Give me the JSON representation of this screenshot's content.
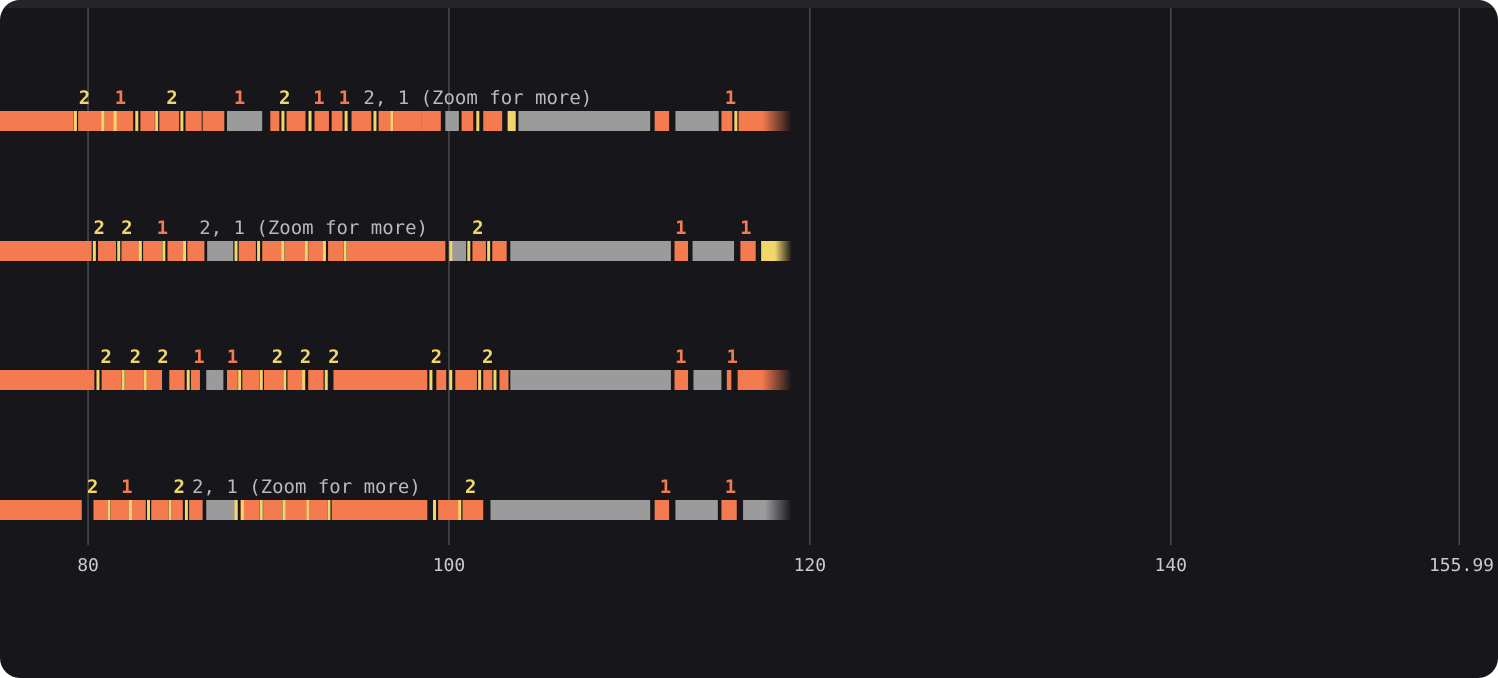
{
  "chart_data": {
    "type": "timeline",
    "x_axis": {
      "ticks": [
        "80",
        "100",
        "120",
        "140",
        "155.99"
      ],
      "tick_values": [
        80,
        100,
        120,
        140,
        155.99
      ],
      "domain": [
        75.12,
        156.03
      ],
      "gridlines": true
    },
    "colors": {
      "primary": "#f47a4f",
      "secondary": "#9b9b9b",
      "marker": "#f1d66c",
      "label_one": "#f47a4f",
      "label_two": "#f1d66c",
      "label_zoom": "#b9b9bf",
      "gridline": "#4a4a52",
      "background": "#17161b"
    },
    "data_extent_end": 119.0,
    "tracks": [
      {
        "segments": [
          {
            "start": 75.12,
            "end": 79.2,
            "kind": "primary"
          },
          {
            "start": 79.45,
            "end": 80.75,
            "kind": "primary"
          },
          {
            "start": 80.9,
            "end": 81.45,
            "kind": "primary"
          },
          {
            "start": 81.5,
            "end": 82.5,
            "kind": "primary"
          },
          {
            "start": 82.9,
            "end": 83.7,
            "kind": "primary"
          },
          {
            "start": 83.95,
            "end": 85.05,
            "kind": "primary"
          },
          {
            "start": 85.4,
            "end": 86.3,
            "kind": "primary"
          },
          {
            "start": 86.35,
            "end": 87.55,
            "kind": "primary"
          },
          {
            "start": 87.7,
            "end": 89.65,
            "kind": "secondary"
          },
          {
            "start": 90.1,
            "end": 90.6,
            "kind": "primary"
          },
          {
            "start": 91.0,
            "end": 92.05,
            "kind": "primary"
          },
          {
            "start": 92.55,
            "end": 93.35,
            "kind": "primary"
          },
          {
            "start": 93.5,
            "end": 94.1,
            "kind": "primary"
          },
          {
            "start": 94.6,
            "end": 95.7,
            "kind": "primary"
          },
          {
            "start": 96.1,
            "end": 96.8,
            "kind": "primary"
          },
          {
            "start": 96.95,
            "end": 98.5,
            "kind": "primary"
          },
          {
            "start": 98.5,
            "end": 99.55,
            "kind": "primary"
          },
          {
            "start": 99.8,
            "end": 100.55,
            "kind": "secondary"
          },
          {
            "start": 100.7,
            "end": 101.35,
            "kind": "primary"
          },
          {
            "start": 101.9,
            "end": 102.95,
            "kind": "primary"
          },
          {
            "start": 103.25,
            "end": 103.7,
            "kind": "marker"
          },
          {
            "start": 103.85,
            "end": 111.15,
            "kind": "secondary"
          },
          {
            "start": 111.4,
            "end": 112.2,
            "kind": "primary"
          },
          {
            "start": 112.55,
            "end": 114.95,
            "kind": "secondary"
          },
          {
            "start": 115.1,
            "end": 115.7,
            "kind": "primary"
          },
          {
            "start": 116.05,
            "end": 119.0,
            "kind": "primary",
            "fade": true
          }
        ],
        "markers": [
          79.3,
          80.82,
          81.5,
          82.7,
          83.8,
          85.2,
          90.8,
          92.3,
          94.3,
          95.9,
          96.85,
          101.6,
          115.9
        ],
        "labels": [
          {
            "x": 79.8,
            "text": "2",
            "kind": "two"
          },
          {
            "x": 81.8,
            "text": "1",
            "kind": "one"
          },
          {
            "x": 84.65,
            "text": "2",
            "kind": "two"
          },
          {
            "x": 88.4,
            "text": "1",
            "kind": "one"
          },
          {
            "x": 90.9,
            "text": "2",
            "kind": "two"
          },
          {
            "x": 92.8,
            "text": "1",
            "kind": "one"
          },
          {
            "x": 94.2,
            "text": "1",
            "kind": "one"
          },
          {
            "x": 101.6,
            "text": "2, 1 (Zoom for more)",
            "kind": "zoom"
          },
          {
            "x": 115.6,
            "text": "1",
            "kind": "one"
          }
        ]
      },
      {
        "segments": [
          {
            "start": 75.12,
            "end": 80.2,
            "kind": "primary"
          },
          {
            "start": 80.55,
            "end": 81.55,
            "kind": "primary"
          },
          {
            "start": 81.85,
            "end": 82.85,
            "kind": "primary"
          },
          {
            "start": 83.05,
            "end": 84.1,
            "kind": "primary"
          },
          {
            "start": 84.4,
            "end": 85.3,
            "kind": "primary"
          },
          {
            "start": 85.5,
            "end": 86.45,
            "kind": "primary"
          },
          {
            "start": 86.6,
            "end": 88.05,
            "kind": "secondary"
          },
          {
            "start": 88.35,
            "end": 89.3,
            "kind": "primary"
          },
          {
            "start": 89.65,
            "end": 90.75,
            "kind": "primary"
          },
          {
            "start": 90.9,
            "end": 92.05,
            "kind": "primary"
          },
          {
            "start": 92.2,
            "end": 93.05,
            "kind": "primary"
          },
          {
            "start": 93.3,
            "end": 94.15,
            "kind": "primary"
          },
          {
            "start": 94.35,
            "end": 99.8,
            "kind": "primary"
          },
          {
            "start": 100.15,
            "end": 100.95,
            "kind": "secondary"
          },
          {
            "start": 101.3,
            "end": 102.05,
            "kind": "primary"
          },
          {
            "start": 102.4,
            "end": 103.2,
            "kind": "primary"
          },
          {
            "start": 103.4,
            "end": 112.3,
            "kind": "secondary"
          },
          {
            "start": 112.5,
            "end": 113.25,
            "kind": "primary"
          },
          {
            "start": 113.5,
            "end": 115.8,
            "kind": "secondary"
          },
          {
            "start": 116.15,
            "end": 117.0,
            "kind": "primary"
          },
          {
            "start": 117.3,
            "end": 119.0,
            "kind": "marker",
            "fade": true
          }
        ],
        "markers": [
          80.35,
          81.7,
          82.9,
          84.2,
          85.35,
          88.2,
          89.45,
          90.8,
          92.1,
          93.1,
          94.25,
          100.1,
          101.1,
          102.2
        ],
        "labels": [
          {
            "x": 80.62,
            "text": "2",
            "kind": "two"
          },
          {
            "x": 82.15,
            "text": "2",
            "kind": "two"
          },
          {
            "x": 84.12,
            "text": "1",
            "kind": "one"
          },
          {
            "x": 92.5,
            "text": "2, 1 (Zoom for more)",
            "kind": "zoom"
          },
          {
            "x": 101.6,
            "text": "2",
            "kind": "two"
          },
          {
            "x": 112.85,
            "text": "1",
            "kind": "one"
          },
          {
            "x": 116.45,
            "text": "1",
            "kind": "one"
          }
        ]
      },
      {
        "segments": [
          {
            "start": 75.12,
            "end": 80.35,
            "kind": "primary"
          },
          {
            "start": 80.75,
            "end": 81.85,
            "kind": "primary"
          },
          {
            "start": 82.05,
            "end": 83.05,
            "kind": "primary"
          },
          {
            "start": 83.2,
            "end": 84.1,
            "kind": "primary"
          },
          {
            "start": 84.5,
            "end": 85.35,
            "kind": "primary"
          },
          {
            "start": 85.7,
            "end": 86.2,
            "kind": "primary"
          },
          {
            "start": 86.55,
            "end": 87.5,
            "kind": "secondary"
          },
          {
            "start": 87.7,
            "end": 88.3,
            "kind": "primary"
          },
          {
            "start": 88.55,
            "end": 89.5,
            "kind": "primary"
          },
          {
            "start": 89.75,
            "end": 90.8,
            "kind": "primary"
          },
          {
            "start": 91.05,
            "end": 92.0,
            "kind": "primary"
          },
          {
            "start": 92.2,
            "end": 93.05,
            "kind": "primary"
          },
          {
            "start": 93.6,
            "end": 98.8,
            "kind": "primary"
          },
          {
            "start": 99.3,
            "end": 99.85,
            "kind": "primary"
          },
          {
            "start": 100.35,
            "end": 101.55,
            "kind": "primary"
          },
          {
            "start": 101.9,
            "end": 102.4,
            "kind": "primary"
          },
          {
            "start": 102.8,
            "end": 103.3,
            "kind": "primary"
          },
          {
            "start": 103.4,
            "end": 112.3,
            "kind": "secondary"
          },
          {
            "start": 112.5,
            "end": 113.25,
            "kind": "primary"
          },
          {
            "start": 113.55,
            "end": 115.1,
            "kind": "secondary"
          },
          {
            "start": 115.4,
            "end": 115.65,
            "kind": "primary"
          },
          {
            "start": 116.0,
            "end": 119.0,
            "kind": "primary",
            "fade": true
          }
        ],
        "markers": [
          80.55,
          81.95,
          83.15,
          85.55,
          88.4,
          89.6,
          90.9,
          91.95,
          93.2,
          99.0,
          100.1,
          101.7,
          102.55
        ],
        "labels": [
          {
            "x": 81.0,
            "text": "2",
            "kind": "two"
          },
          {
            "x": 82.62,
            "text": "2",
            "kind": "two"
          },
          {
            "x": 84.15,
            "text": "2",
            "kind": "two"
          },
          {
            "x": 86.15,
            "text": "1",
            "kind": "one"
          },
          {
            "x": 88.0,
            "text": "1",
            "kind": "one"
          },
          {
            "x": 90.5,
            "text": "2",
            "kind": "two"
          },
          {
            "x": 92.05,
            "text": "2",
            "kind": "two"
          },
          {
            "x": 93.62,
            "text": "2",
            "kind": "two"
          },
          {
            "x": 99.3,
            "text": "2",
            "kind": "two"
          },
          {
            "x": 102.15,
            "text": "2",
            "kind": "two"
          },
          {
            "x": 112.85,
            "text": "1",
            "kind": "one"
          },
          {
            "x": 115.7,
            "text": "1",
            "kind": "one"
          }
        ]
      },
      {
        "segments": [
          {
            "start": 75.12,
            "end": 79.65,
            "kind": "primary"
          },
          {
            "start": 80.3,
            "end": 81.05,
            "kind": "primary"
          },
          {
            "start": 81.25,
            "end": 82.3,
            "kind": "primary"
          },
          {
            "start": 82.4,
            "end": 83.2,
            "kind": "primary"
          },
          {
            "start": 83.5,
            "end": 84.45,
            "kind": "primary"
          },
          {
            "start": 84.65,
            "end": 85.25,
            "kind": "primary"
          },
          {
            "start": 85.6,
            "end": 86.35,
            "kind": "primary"
          },
          {
            "start": 86.55,
            "end": 88.3,
            "kind": "secondary"
          },
          {
            "start": 88.45,
            "end": 89.5,
            "kind": "primary"
          },
          {
            "start": 89.7,
            "end": 90.75,
            "kind": "primary"
          },
          {
            "start": 90.9,
            "end": 92.15,
            "kind": "primary"
          },
          {
            "start": 92.3,
            "end": 93.25,
            "kind": "primary"
          },
          {
            "start": 93.5,
            "end": 98.8,
            "kind": "primary"
          },
          {
            "start": 99.4,
            "end": 100.55,
            "kind": "primary"
          },
          {
            "start": 100.75,
            "end": 101.9,
            "kind": "primary"
          },
          {
            "start": 102.3,
            "end": 111.15,
            "kind": "secondary"
          },
          {
            "start": 111.4,
            "end": 112.2,
            "kind": "primary"
          },
          {
            "start": 112.55,
            "end": 114.9,
            "kind": "secondary"
          },
          {
            "start": 115.1,
            "end": 115.95,
            "kind": "primary"
          },
          {
            "start": 116.3,
            "end": 119.0,
            "kind": "secondary",
            "fade": true
          }
        ],
        "markers": [
          81.15,
          82.35,
          83.35,
          84.55,
          85.45,
          88.2,
          88.55,
          89.6,
          90.85,
          92.2,
          93.35,
          99.2,
          100.6
        ],
        "labels": [
          {
            "x": 80.25,
            "text": "2",
            "kind": "two"
          },
          {
            "x": 82.15,
            "text": "1",
            "kind": "one"
          },
          {
            "x": 85.05,
            "text": "2",
            "kind": "two"
          },
          {
            "x": 92.1,
            "text": "2, 1 (Zoom for more)",
            "kind": "zoom"
          },
          {
            "x": 101.2,
            "text": "2",
            "kind": "two"
          },
          {
            "x": 112.0,
            "text": "1",
            "kind": "one"
          },
          {
            "x": 115.6,
            "text": "1",
            "kind": "one"
          }
        ]
      }
    ]
  }
}
